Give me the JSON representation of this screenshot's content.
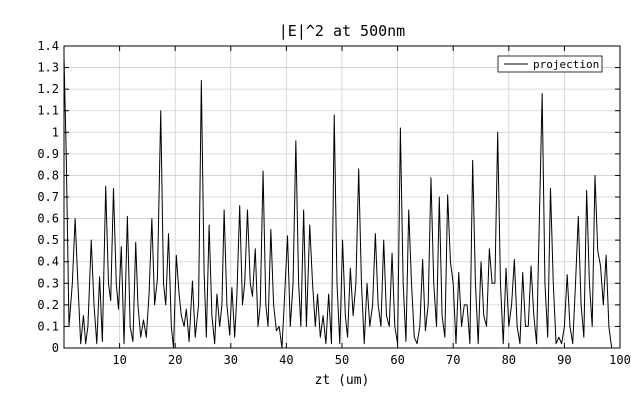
{
  "chart_data": {
    "type": "line",
    "title": "|E|^2 at 500nm",
    "xlabel": "zt (um)",
    "ylabel": "",
    "xlim": [
      0,
      100
    ],
    "ylim": [
      0,
      1.4
    ],
    "x_ticks": [
      10,
      20,
      30,
      40,
      50,
      60,
      70,
      80,
      90,
      100
    ],
    "y_ticks": [
      0,
      0.1,
      0.2,
      0.3,
      0.4,
      0.5,
      0.6,
      0.7,
      0.8,
      0.9,
      1,
      1.1,
      1.2,
      1.3,
      1.4
    ],
    "grid": true,
    "legend_position": "top-right",
    "series": [
      {
        "name": "projection",
        "color": "#000000",
        "points": [
          [
            0.0,
            1.35
          ],
          [
            0.4,
            0.9
          ],
          [
            0.9,
            0.1
          ],
          [
            1.5,
            0.3
          ],
          [
            2.0,
            0.6
          ],
          [
            2.5,
            0.3
          ],
          [
            3.0,
            0.02
          ],
          [
            3.5,
            0.15
          ],
          [
            3.9,
            0.02
          ],
          [
            4.3,
            0.1
          ],
          [
            4.9,
            0.5
          ],
          [
            5.4,
            0.2
          ],
          [
            5.9,
            0.02
          ],
          [
            6.4,
            0.33
          ],
          [
            6.9,
            0.03
          ],
          [
            7.5,
            0.75
          ],
          [
            8.0,
            0.3
          ],
          [
            8.4,
            0.22
          ],
          [
            8.9,
            0.74
          ],
          [
            9.4,
            0.3
          ],
          [
            9.8,
            0.18
          ],
          [
            10.3,
            0.47
          ],
          [
            10.8,
            0.02
          ],
          [
            11.4,
            0.61
          ],
          [
            11.9,
            0.1
          ],
          [
            12.4,
            0.03
          ],
          [
            12.9,
            0.49
          ],
          [
            13.3,
            0.2
          ],
          [
            13.8,
            0.05
          ],
          [
            14.3,
            0.13
          ],
          [
            14.8,
            0.05
          ],
          [
            15.3,
            0.25
          ],
          [
            15.8,
            0.6
          ],
          [
            16.3,
            0.2
          ],
          [
            16.8,
            0.32
          ],
          [
            17.4,
            1.1
          ],
          [
            17.9,
            0.3
          ],
          [
            18.3,
            0.2
          ],
          [
            18.8,
            0.53
          ],
          [
            19.3,
            0.1
          ],
          [
            19.7,
            0.0
          ],
          [
            20.2,
            0.43
          ],
          [
            20.7,
            0.25
          ],
          [
            21.1,
            0.15
          ],
          [
            21.6,
            0.1
          ],
          [
            22.0,
            0.18
          ],
          [
            22.5,
            0.03
          ],
          [
            23.1,
            0.31
          ],
          [
            23.6,
            0.05
          ],
          [
            24.2,
            0.2
          ],
          [
            24.7,
            1.24
          ],
          [
            25.2,
            0.35
          ],
          [
            25.6,
            0.05
          ],
          [
            26.1,
            0.57
          ],
          [
            26.6,
            0.15
          ],
          [
            27.1,
            0.02
          ],
          [
            27.5,
            0.25
          ],
          [
            28.0,
            0.1
          ],
          [
            28.4,
            0.2
          ],
          [
            28.8,
            0.64
          ],
          [
            29.3,
            0.2
          ],
          [
            29.8,
            0.06
          ],
          [
            30.2,
            0.28
          ],
          [
            30.7,
            0.05
          ],
          [
            31.1,
            0.25
          ],
          [
            31.6,
            0.66
          ],
          [
            32.1,
            0.2
          ],
          [
            32.5,
            0.3
          ],
          [
            33.0,
            0.64
          ],
          [
            33.5,
            0.3
          ],
          [
            33.9,
            0.24
          ],
          [
            34.4,
            0.46
          ],
          [
            34.9,
            0.1
          ],
          [
            35.3,
            0.2
          ],
          [
            35.8,
            0.82
          ],
          [
            36.3,
            0.2
          ],
          [
            36.7,
            0.1
          ],
          [
            37.2,
            0.55
          ],
          [
            37.7,
            0.2
          ],
          [
            38.2,
            0.08
          ],
          [
            38.7,
            0.1
          ],
          [
            39.2,
            0.0
          ],
          [
            39.6,
            0.2
          ],
          [
            40.2,
            0.52
          ],
          [
            40.7,
            0.1
          ],
          [
            41.2,
            0.3
          ],
          [
            41.7,
            0.96
          ],
          [
            42.2,
            0.3
          ],
          [
            42.6,
            0.1
          ],
          [
            43.1,
            0.64
          ],
          [
            43.6,
            0.1
          ],
          [
            44.2,
            0.57
          ],
          [
            44.7,
            0.3
          ],
          [
            45.2,
            0.1
          ],
          [
            45.6,
            0.25
          ],
          [
            46.1,
            0.05
          ],
          [
            46.6,
            0.15
          ],
          [
            47.1,
            0.02
          ],
          [
            47.6,
            0.25
          ],
          [
            48.1,
            0.02
          ],
          [
            48.6,
            1.08
          ],
          [
            49.1,
            0.3
          ],
          [
            49.6,
            0.02
          ],
          [
            50.1,
            0.5
          ],
          [
            50.6,
            0.15
          ],
          [
            51.0,
            0.05
          ],
          [
            51.5,
            0.37
          ],
          [
            52.0,
            0.15
          ],
          [
            52.5,
            0.3
          ],
          [
            53.0,
            0.83
          ],
          [
            53.5,
            0.3
          ],
          [
            54.0,
            0.02
          ],
          [
            54.5,
            0.3
          ],
          [
            55.0,
            0.1
          ],
          [
            55.5,
            0.2
          ],
          [
            56.0,
            0.53
          ],
          [
            56.5,
            0.2
          ],
          [
            57.0,
            0.1
          ],
          [
            57.5,
            0.5
          ],
          [
            58.0,
            0.15
          ],
          [
            58.5,
            0.1
          ],
          [
            59.0,
            0.44
          ],
          [
            59.5,
            0.1
          ],
          [
            60.0,
            0.02
          ],
          [
            60.5,
            1.02
          ],
          [
            61.0,
            0.3
          ],
          [
            61.5,
            0.03
          ],
          [
            62.0,
            0.64
          ],
          [
            62.5,
            0.3
          ],
          [
            63.0,
            0.05
          ],
          [
            63.5,
            0.02
          ],
          [
            64.0,
            0.1
          ],
          [
            64.5,
            0.41
          ],
          [
            65.0,
            0.08
          ],
          [
            65.5,
            0.2
          ],
          [
            66.0,
            0.79
          ],
          [
            66.5,
            0.3
          ],
          [
            67.0,
            0.1
          ],
          [
            67.5,
            0.7
          ],
          [
            68.0,
            0.15
          ],
          [
            68.5,
            0.05
          ],
          [
            69.0,
            0.71
          ],
          [
            69.5,
            0.4
          ],
          [
            70.0,
            0.3
          ],
          [
            70.5,
            0.02
          ],
          [
            71.0,
            0.35
          ],
          [
            71.5,
            0.1
          ],
          [
            72.0,
            0.2
          ],
          [
            72.5,
            0.2
          ],
          [
            73.0,
            0.02
          ],
          [
            73.5,
            0.87
          ],
          [
            74.0,
            0.3
          ],
          [
            74.5,
            0.02
          ],
          [
            75.0,
            0.4
          ],
          [
            75.5,
            0.15
          ],
          [
            76.0,
            0.1
          ],
          [
            76.5,
            0.46
          ],
          [
            77.0,
            0.3
          ],
          [
            77.5,
            0.3
          ],
          [
            78.0,
            1.0
          ],
          [
            78.5,
            0.3
          ],
          [
            79.0,
            0.02
          ],
          [
            79.5,
            0.37
          ],
          [
            80.0,
            0.1
          ],
          [
            80.5,
            0.2
          ],
          [
            81.0,
            0.41
          ],
          [
            81.5,
            0.1
          ],
          [
            82.0,
            0.02
          ],
          [
            82.5,
            0.35
          ],
          [
            83.0,
            0.1
          ],
          [
            83.5,
            0.1
          ],
          [
            84.0,
            0.38
          ],
          [
            84.5,
            0.15
          ],
          [
            85.0,
            0.02
          ],
          [
            85.5,
            0.6
          ],
          [
            86.0,
            1.18
          ],
          [
            86.5,
            0.3
          ],
          [
            87.0,
            0.05
          ],
          [
            87.5,
            0.74
          ],
          [
            88.0,
            0.3
          ],
          [
            88.5,
            0.02
          ],
          [
            89.0,
            0.05
          ],
          [
            89.5,
            0.02
          ],
          [
            90.0,
            0.1
          ],
          [
            90.5,
            0.34
          ],
          [
            91.0,
            0.1
          ],
          [
            91.5,
            0.02
          ],
          [
            92.0,
            0.3
          ],
          [
            92.5,
            0.61
          ],
          [
            93.0,
            0.2
          ],
          [
            93.5,
            0.05
          ],
          [
            94.0,
            0.73
          ],
          [
            94.5,
            0.3
          ],
          [
            95.0,
            0.1
          ],
          [
            95.5,
            0.8
          ],
          [
            96.0,
            0.45
          ],
          [
            96.5,
            0.38
          ],
          [
            97.0,
            0.2
          ],
          [
            97.5,
            0.43
          ],
          [
            98.0,
            0.1
          ],
          [
            98.5,
            0.0
          ]
        ]
      }
    ]
  }
}
